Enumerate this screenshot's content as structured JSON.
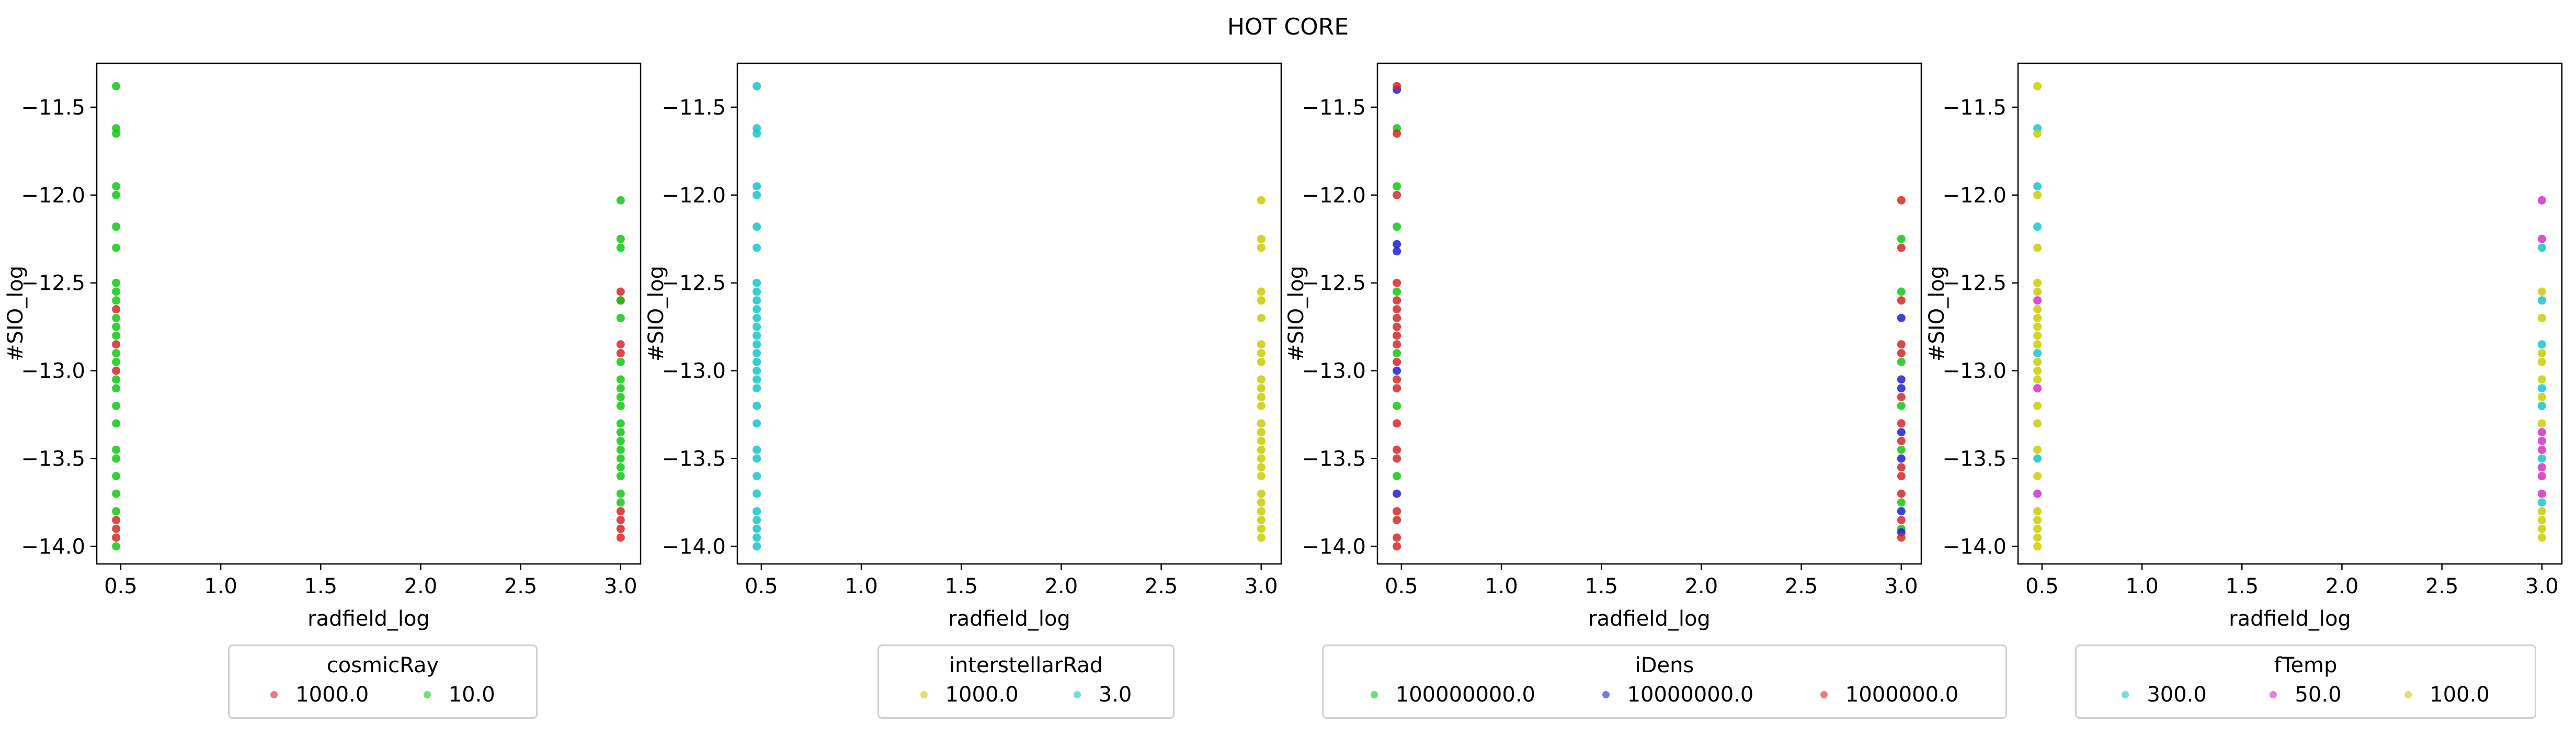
{
  "figure_title": "HOT CORE",
  "chart_data": [
    {
      "type": "scatter",
      "xlabel": "radfield_log",
      "ylabel": "#SIO_log",
      "xlim": [
        0.38,
        3.1
      ],
      "ylim": [
        -14.1,
        -11.25
      ],
      "xticks": [
        "0.5",
        "1.0",
        "1.5",
        "2.0",
        "2.5",
        "3.0"
      ],
      "yticks": [
        "-11.5",
        "-12.0",
        "-12.5",
        "-13.0",
        "-13.5",
        "-14.0"
      ],
      "legend_title": "cosmicRay",
      "legend_placement": "below",
      "series": [
        {
          "name": "1000.0",
          "color": "#d62728",
          "points": [
            [
              0.477,
              -12.65
            ],
            [
              0.477,
              -12.85
            ],
            [
              0.477,
              -13.0
            ],
            [
              0.477,
              -13.85
            ],
            [
              0.477,
              -13.9
            ],
            [
              0.477,
              -13.95
            ],
            [
              3.0,
              -12.55
            ],
            [
              3.0,
              -12.6
            ],
            [
              3.0,
              -12.85
            ],
            [
              3.0,
              -12.9
            ],
            [
              3.0,
              -13.8
            ],
            [
              3.0,
              -13.85
            ],
            [
              3.0,
              -13.9
            ],
            [
              3.0,
              -13.95
            ]
          ]
        },
        {
          "name": "10.0",
          "color": "#11c911",
          "points": [
            [
              0.477,
              -11.38
            ],
            [
              0.477,
              -11.62
            ],
            [
              0.477,
              -11.65
            ],
            [
              0.477,
              -11.95
            ],
            [
              0.477,
              -12.0
            ],
            [
              0.477,
              -12.18
            ],
            [
              0.477,
              -12.3
            ],
            [
              0.477,
              -12.5
            ],
            [
              0.477,
              -12.55
            ],
            [
              0.477,
              -12.6
            ],
            [
              0.477,
              -12.7
            ],
            [
              0.477,
              -12.75
            ],
            [
              0.477,
              -12.8
            ],
            [
              0.477,
              -12.9
            ],
            [
              0.477,
              -12.95
            ],
            [
              0.477,
              -13.05
            ],
            [
              0.477,
              -13.1
            ],
            [
              0.477,
              -13.2
            ],
            [
              0.477,
              -13.3
            ],
            [
              0.477,
              -13.45
            ],
            [
              0.477,
              -13.5
            ],
            [
              0.477,
              -13.6
            ],
            [
              0.477,
              -13.7
            ],
            [
              0.477,
              -13.8
            ],
            [
              0.477,
              -14.0
            ],
            [
              3.0,
              -12.03
            ],
            [
              3.0,
              -12.25
            ],
            [
              3.0,
              -12.3
            ],
            [
              3.0,
              -12.6
            ],
            [
              3.0,
              -12.7
            ],
            [
              3.0,
              -12.95
            ],
            [
              3.0,
              -13.05
            ],
            [
              3.0,
              -13.1
            ],
            [
              3.0,
              -13.15
            ],
            [
              3.0,
              -13.2
            ],
            [
              3.0,
              -13.3
            ],
            [
              3.0,
              -13.35
            ],
            [
              3.0,
              -13.4
            ],
            [
              3.0,
              -13.45
            ],
            [
              3.0,
              -13.5
            ],
            [
              3.0,
              -13.55
            ],
            [
              3.0,
              -13.6
            ],
            [
              3.0,
              -13.7
            ],
            [
              3.0,
              -13.75
            ]
          ]
        }
      ]
    },
    {
      "type": "scatter",
      "xlabel": "radfield_log",
      "ylabel": "#SIO_log",
      "xlim": [
        0.38,
        3.1
      ],
      "ylim": [
        -14.1,
        -11.25
      ],
      "xticks": [
        "0.5",
        "1.0",
        "1.5",
        "2.0",
        "2.5",
        "3.0"
      ],
      "yticks": [
        "-11.5",
        "-12.0",
        "-12.5",
        "-13.0",
        "-13.5",
        "-14.0"
      ],
      "legend_title": "interstellarRad",
      "legend_placement": "below",
      "series": [
        {
          "name": "1000.0",
          "color": "#cccc00",
          "points": [
            [
              3.0,
              -12.03
            ],
            [
              3.0,
              -12.25
            ],
            [
              3.0,
              -12.3
            ],
            [
              3.0,
              -12.55
            ],
            [
              3.0,
              -12.6
            ],
            [
              3.0,
              -12.7
            ],
            [
              3.0,
              -12.85
            ],
            [
              3.0,
              -12.9
            ],
            [
              3.0,
              -12.95
            ],
            [
              3.0,
              -13.05
            ],
            [
              3.0,
              -13.1
            ],
            [
              3.0,
              -13.15
            ],
            [
              3.0,
              -13.2
            ],
            [
              3.0,
              -13.3
            ],
            [
              3.0,
              -13.35
            ],
            [
              3.0,
              -13.4
            ],
            [
              3.0,
              -13.45
            ],
            [
              3.0,
              -13.5
            ],
            [
              3.0,
              -13.55
            ],
            [
              3.0,
              -13.6
            ],
            [
              3.0,
              -13.7
            ],
            [
              3.0,
              -13.75
            ],
            [
              3.0,
              -13.8
            ],
            [
              3.0,
              -13.85
            ],
            [
              3.0,
              -13.9
            ],
            [
              3.0,
              -13.95
            ]
          ]
        },
        {
          "name": "3.0",
          "color": "#17c6cb",
          "points": [
            [
              0.477,
              -11.38
            ],
            [
              0.477,
              -11.62
            ],
            [
              0.477,
              -11.65
            ],
            [
              0.477,
              -11.95
            ],
            [
              0.477,
              -12.0
            ],
            [
              0.477,
              -12.18
            ],
            [
              0.477,
              -12.3
            ],
            [
              0.477,
              -12.5
            ],
            [
              0.477,
              -12.55
            ],
            [
              0.477,
              -12.6
            ],
            [
              0.477,
              -12.65
            ],
            [
              0.477,
              -12.7
            ],
            [
              0.477,
              -12.75
            ],
            [
              0.477,
              -12.8
            ],
            [
              0.477,
              -12.85
            ],
            [
              0.477,
              -12.9
            ],
            [
              0.477,
              -12.95
            ],
            [
              0.477,
              -13.0
            ],
            [
              0.477,
              -13.05
            ],
            [
              0.477,
              -13.1
            ],
            [
              0.477,
              -13.2
            ],
            [
              0.477,
              -13.3
            ],
            [
              0.477,
              -13.45
            ],
            [
              0.477,
              -13.5
            ],
            [
              0.477,
              -13.6
            ],
            [
              0.477,
              -13.7
            ],
            [
              0.477,
              -13.8
            ],
            [
              0.477,
              -13.85
            ],
            [
              0.477,
              -13.9
            ],
            [
              0.477,
              -13.95
            ],
            [
              0.477,
              -14.0
            ]
          ]
        }
      ]
    },
    {
      "type": "scatter",
      "xlabel": "radfield_log",
      "ylabel": "#SIO_log",
      "xlim": [
        0.38,
        3.1
      ],
      "ylim": [
        -14.1,
        -11.25
      ],
      "xticks": [
        "0.5",
        "1.0",
        "1.5",
        "2.0",
        "2.5",
        "3.0"
      ],
      "yticks": [
        "-11.5",
        "-12.0",
        "-12.5",
        "-13.0",
        "-13.5",
        "-14.0"
      ],
      "legend_title": "iDens",
      "legend_placement": "below",
      "series": [
        {
          "name": "100000000.0",
          "color": "#11c911",
          "points": [
            [
              0.477,
              -11.62
            ],
            [
              0.477,
              -11.95
            ],
            [
              0.477,
              -12.18
            ],
            [
              0.477,
              -12.55
            ],
            [
              0.477,
              -12.9
            ],
            [
              0.477,
              -13.2
            ],
            [
              0.477,
              -13.6
            ],
            [
              3.0,
              -12.25
            ],
            [
              3.0,
              -12.55
            ],
            [
              3.0,
              -12.95
            ],
            [
              3.0,
              -13.2
            ],
            [
              3.0,
              -13.45
            ],
            [
              3.0,
              -13.75
            ],
            [
              3.0,
              -13.9
            ]
          ]
        },
        {
          "name": "10000000.0",
          "color": "#1f1fd6",
          "points": [
            [
              0.477,
              -11.4
            ],
            [
              0.477,
              -12.28
            ],
            [
              0.477,
              -12.32
            ],
            [
              0.477,
              -13.0
            ],
            [
              0.477,
              -13.7
            ],
            [
              3.0,
              -12.7
            ],
            [
              3.0,
              -13.05
            ],
            [
              3.0,
              -13.1
            ],
            [
              3.0,
              -13.35
            ],
            [
              3.0,
              -13.5
            ],
            [
              3.0,
              -13.8
            ],
            [
              3.0,
              -13.92
            ]
          ]
        },
        {
          "name": "1000000.0",
          "color": "#d62728",
          "points": [
            [
              0.477,
              -11.38
            ],
            [
              0.477,
              -11.65
            ],
            [
              0.477,
              -12.0
            ],
            [
              0.477,
              -12.5
            ],
            [
              0.477,
              -12.6
            ],
            [
              0.477,
              -12.65
            ],
            [
              0.477,
              -12.7
            ],
            [
              0.477,
              -12.75
            ],
            [
              0.477,
              -12.8
            ],
            [
              0.477,
              -12.85
            ],
            [
              0.477,
              -12.95
            ],
            [
              0.477,
              -13.05
            ],
            [
              0.477,
              -13.1
            ],
            [
              0.477,
              -13.3
            ],
            [
              0.477,
              -13.45
            ],
            [
              0.477,
              -13.5
            ],
            [
              0.477,
              -13.8
            ],
            [
              0.477,
              -13.85
            ],
            [
              0.477,
              -13.95
            ],
            [
              0.477,
              -14.0
            ],
            [
              3.0,
              -12.03
            ],
            [
              3.0,
              -12.3
            ],
            [
              3.0,
              -12.6
            ],
            [
              3.0,
              -12.85
            ],
            [
              3.0,
              -12.9
            ],
            [
              3.0,
              -13.15
            ],
            [
              3.0,
              -13.3
            ],
            [
              3.0,
              -13.4
            ],
            [
              3.0,
              -13.55
            ],
            [
              3.0,
              -13.6
            ],
            [
              3.0,
              -13.7
            ],
            [
              3.0,
              -13.85
            ],
            [
              3.0,
              -13.95
            ]
          ]
        }
      ]
    },
    {
      "type": "scatter",
      "xlabel": "radfield_log",
      "ylabel": "#SIO_log",
      "xlim": [
        0.38,
        3.1
      ],
      "ylim": [
        -14.1,
        -11.25
      ],
      "xticks": [
        "0.5",
        "1.0",
        "1.5",
        "2.0",
        "2.5",
        "3.0"
      ],
      "yticks": [
        "-11.5",
        "-12.0",
        "-12.5",
        "-13.0",
        "-13.5",
        "-14.0"
      ],
      "legend_title": "fTemp",
      "legend_placement": "below",
      "series": [
        {
          "name": "300.0",
          "color": "#17c6cb",
          "points": [
            [
              0.477,
              -11.62
            ],
            [
              0.477,
              -11.95
            ],
            [
              0.477,
              -12.18
            ],
            [
              0.477,
              -12.9
            ],
            [
              0.477,
              -13.5
            ],
            [
              3.0,
              -12.3
            ],
            [
              3.0,
              -12.6
            ],
            [
              3.0,
              -12.85
            ],
            [
              3.0,
              -13.1
            ],
            [
              3.0,
              -13.2
            ],
            [
              3.0,
              -13.5
            ],
            [
              3.0,
              -13.75
            ]
          ]
        },
        {
          "name": "50.0",
          "color": "#d62fc8",
          "points": [
            [
              0.477,
              -12.6
            ],
            [
              0.477,
              -13.1
            ],
            [
              0.477,
              -13.7
            ],
            [
              3.0,
              -12.03
            ],
            [
              3.0,
              -12.25
            ],
            [
              3.0,
              -13.35
            ],
            [
              3.0,
              -13.4
            ],
            [
              3.0,
              -13.45
            ],
            [
              3.0,
              -13.55
            ],
            [
              3.0,
              -13.6
            ],
            [
              3.0,
              -13.7
            ]
          ]
        },
        {
          "name": "100.0",
          "color": "#cccc00",
          "points": [
            [
              0.477,
              -11.38
            ],
            [
              0.477,
              -11.65
            ],
            [
              0.477,
              -12.0
            ],
            [
              0.477,
              -12.3
            ],
            [
              0.477,
              -12.5
            ],
            [
              0.477,
              -12.55
            ],
            [
              0.477,
              -12.65
            ],
            [
              0.477,
              -12.7
            ],
            [
              0.477,
              -12.75
            ],
            [
              0.477,
              -12.8
            ],
            [
              0.477,
              -12.85
            ],
            [
              0.477,
              -12.95
            ],
            [
              0.477,
              -13.0
            ],
            [
              0.477,
              -13.05
            ],
            [
              0.477,
              -13.2
            ],
            [
              0.477,
              -13.3
            ],
            [
              0.477,
              -13.45
            ],
            [
              0.477,
              -13.6
            ],
            [
              0.477,
              -13.8
            ],
            [
              0.477,
              -13.85
            ],
            [
              0.477,
              -13.9
            ],
            [
              0.477,
              -13.95
            ],
            [
              0.477,
              -14.0
            ],
            [
              3.0,
              -12.55
            ],
            [
              3.0,
              -12.7
            ],
            [
              3.0,
              -12.9
            ],
            [
              3.0,
              -12.95
            ],
            [
              3.0,
              -13.05
            ],
            [
              3.0,
              -13.15
            ],
            [
              3.0,
              -13.3
            ],
            [
              3.0,
              -13.8
            ],
            [
              3.0,
              -13.85
            ],
            [
              3.0,
              -13.9
            ],
            [
              3.0,
              -13.95
            ]
          ]
        }
      ]
    }
  ]
}
